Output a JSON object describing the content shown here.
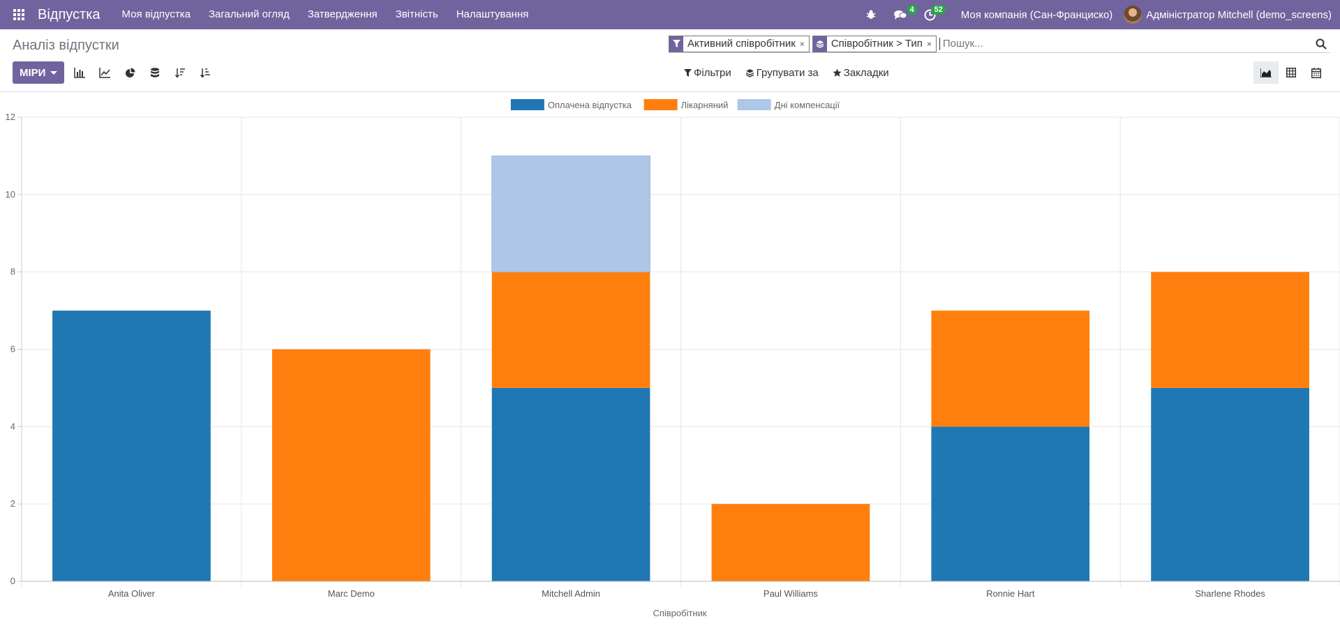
{
  "navbar": {
    "app_title": "Відпустка",
    "menu": [
      "Моя відпустка",
      "Загальний огляд",
      "Затвердження",
      "Звітність",
      "Налаштування"
    ],
    "messages_count": "4",
    "activities_count": "52",
    "company": "Моя компанія (Сан-Франциско)",
    "user": "Адміністратор Mitchell (demo_screens)"
  },
  "control_panel": {
    "title": "Аналіз відпустки",
    "facets": [
      {
        "icon": "filter-icon",
        "label": "Активний співробітник"
      },
      {
        "icon": "layers-icon",
        "label": "Співробітник > Тип"
      }
    ],
    "search_placeholder": "Пошук...",
    "measures_label": "МІРИ",
    "filters_label": "Фільтри",
    "groupby_label": "Групувати за",
    "favorites_label": "Закладки"
  },
  "chart_data": {
    "type": "bar",
    "stacked": true,
    "categories": [
      "Anita Oliver",
      "Marc Demo",
      "Mitchell Admin",
      "Paul Williams",
      "Ronnie Hart",
      "Sharlene Rhodes"
    ],
    "series": [
      {
        "name": "Оплачена відпустка",
        "color": "#1f77b4",
        "values": [
          7,
          0,
          5,
          0,
          4,
          5
        ]
      },
      {
        "name": "Лікарняний",
        "color": "#ff7f0e",
        "values": [
          0,
          6,
          3,
          2,
          3,
          3
        ]
      },
      {
        "name": "Дні компенсації",
        "color": "#aec7e8",
        "values": [
          0,
          0,
          3,
          0,
          0,
          0
        ]
      }
    ],
    "xlabel": "Співробітник",
    "ylabel": "",
    "ylim": [
      0,
      12
    ],
    "yticks": [
      0,
      2,
      4,
      6,
      8,
      10,
      12
    ],
    "grid": true,
    "legend_position": "top-center"
  }
}
